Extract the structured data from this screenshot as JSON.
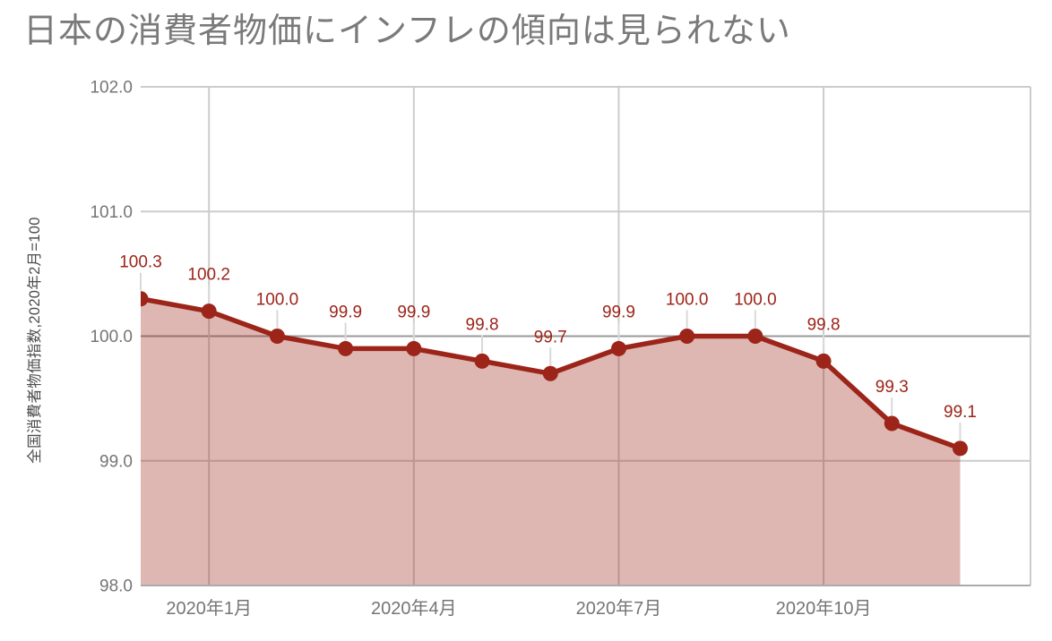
{
  "chart_data": {
    "type": "area",
    "title": "日本の消費者物価にインフレの傾向は見られない",
    "ylabel": "全国消費者物価指数,2020年2月=100",
    "xlabel": "",
    "values": [
      100.3,
      100.2,
      100.0,
      99.9,
      99.9,
      99.8,
      99.7,
      99.9,
      100.0,
      100.0,
      99.8,
      99.3,
      99.1
    ],
    "point_labels": [
      "100.3",
      "100.2",
      "100.0",
      "99.9",
      "99.9",
      "99.8",
      "99.7",
      "99.9",
      "100.0",
      "100.0",
      "99.8",
      "99.3",
      "99.1"
    ],
    "x_tick_labels": [
      "2020年1月",
      "2020年4月",
      "2020年7月",
      "2020年10月"
    ],
    "x_tick_indices": [
      1,
      4,
      7,
      10
    ],
    "y_tick_labels": [
      "102.0",
      "101.0",
      "100.0",
      "99.0",
      "98.0"
    ],
    "ylim": [
      98.0,
      102.0
    ],
    "baseline_value": 100.0,
    "grid": "on",
    "legend": "none",
    "markers": "filled-circles",
    "colors": {
      "line": "#9C2419",
      "marker": "#9C2419",
      "fill": "rgba(156,36,25,0.33)",
      "label_text": "#9C2419",
      "gridline": "#CCCCCC",
      "baseline": "#999999",
      "bottom_axis": "#ABABAB",
      "tick_text": "#757575",
      "title_text": "#7A7A7A",
      "ylabel_text": "#4D4D4D",
      "connector": "#D9D9D9",
      "background": "#FFFFFF"
    }
  }
}
